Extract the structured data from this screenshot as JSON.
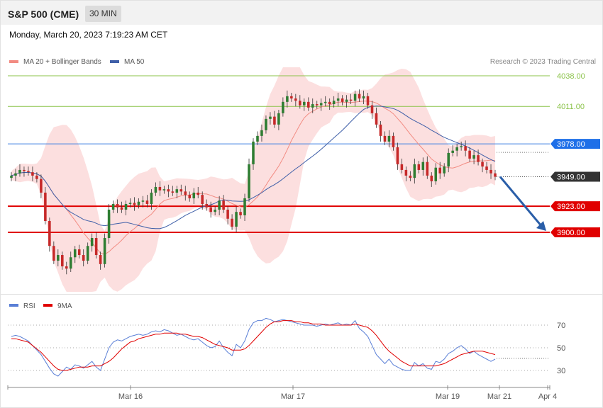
{
  "header": {
    "title": "S&P 500 (CME)",
    "timeframe": "30 MIN"
  },
  "date_text": "Monday, March 20, 2023 7:19:23 AM CET",
  "credit": "Research © 2023 Trading Central",
  "colors": {
    "up": "#2e7d32",
    "down": "#c62828",
    "bollinger": "#f9c4c4",
    "ma20": "#f28b82",
    "ma50": "#3f5fa8",
    "resistance": "#8bc34a",
    "pivot": "#3d7fe0",
    "support": "#e00000",
    "arrow": "#2a5ea8",
    "rsi": "#5a7fd6",
    "rsi_ma": "#e00000",
    "last_price": "#333333"
  },
  "legend": [
    {
      "name": "MA 20 + Bollinger Bands",
      "color": "#f28b82"
    },
    {
      "name": "MA 50",
      "color": "#3f5fa8"
    }
  ],
  "rsi_legend": [
    {
      "name": "RSI",
      "color": "#5a7fd6"
    },
    {
      "name": "9MA",
      "color": "#e00000"
    }
  ],
  "levels": [
    {
      "value": "4038.00",
      "kind": "resistance"
    },
    {
      "value": "4011.00",
      "kind": "resistance"
    },
    {
      "value": "3978.00",
      "kind": "pivot"
    },
    {
      "value": "3949.00",
      "kind": "last"
    },
    {
      "value": "3923.00",
      "kind": "support"
    },
    {
      "value": "3900.00",
      "kind": "support"
    }
  ],
  "x_ticks": [
    "Mar 16",
    "Mar 17",
    "Mar 19",
    "Mar 21",
    "Apr 4"
  ],
  "rsi_ticks": [
    "70",
    "50",
    "30"
  ],
  "chart_data": {
    "type": "candlestick",
    "y_range": [
      3840,
      4080
    ],
    "rsi_range": [
      15,
      85
    ],
    "closes": [
      3950,
      3952,
      3955,
      3954,
      3953,
      3950,
      3947,
      3935,
      3910,
      3888,
      3875,
      3880,
      3870,
      3868,
      3878,
      3885,
      3880,
      3875,
      3888,
      3895,
      3880,
      3872,
      3895,
      3920,
      3925,
      3922,
      3920,
      3925,
      3926,
      3924,
      3927,
      3928,
      3925,
      3935,
      3940,
      3937,
      3938,
      3936,
      3935,
      3938,
      3936,
      3933,
      3930,
      3935,
      3933,
      3925,
      3922,
      3918,
      3920,
      3928,
      3920,
      3912,
      3905,
      3918,
      3915,
      3930,
      3960,
      3980,
      3985,
      3990,
      4000,
      4002,
      3995,
      4005,
      4015,
      4020,
      4018,
      4016,
      4012,
      4015,
      4010,
      4013,
      4012,
      4014,
      4015,
      4013,
      4016,
      4018,
      4015,
      4017,
      4016,
      4022,
      4018,
      4020,
      4012,
      4005,
      3995,
      3985,
      3980,
      3985,
      3975,
      3960,
      3955,
      3950,
      3948,
      3960,
      3955,
      3962,
      3950,
      3945,
      3957,
      3952,
      3958,
      3970,
      3972,
      3975,
      3976,
      3972,
      3965,
      3968,
      3962,
      3958,
      3955,
      3952,
      3949
    ],
    "rsi": [
      60,
      61,
      60,
      58,
      56,
      52,
      48,
      44,
      38,
      32,
      27,
      25,
      29,
      33,
      31,
      35,
      34,
      32,
      35,
      38,
      33,
      30,
      40,
      50,
      55,
      57,
      56,
      58,
      60,
      61,
      62,
      61,
      62,
      64,
      65,
      64,
      66,
      65,
      63,
      61,
      62,
      60,
      58,
      57,
      58,
      55,
      52,
      50,
      51,
      56,
      50,
      46,
      43,
      53,
      50,
      56,
      66,
      72,
      74,
      74,
      76,
      75,
      73,
      74,
      75,
      74,
      73,
      72,
      71,
      70,
      70,
      70,
      69,
      70,
      71,
      70,
      71,
      72,
      70,
      71,
      70,
      74,
      67,
      64,
      60,
      52,
      44,
      40,
      36,
      40,
      35,
      33,
      31,
      30,
      30,
      37,
      34,
      36,
      32,
      31,
      38,
      37,
      40,
      45,
      47,
      50,
      52,
      49,
      45,
      47,
      44,
      42,
      40,
      38,
      40
    ],
    "rsi_ma": [
      58,
      58,
      57,
      56,
      55,
      52,
      49,
      46,
      42,
      38,
      34,
      31,
      30,
      30,
      31,
      32,
      33,
      33,
      33,
      34,
      34,
      34,
      36,
      38,
      41,
      45,
      49,
      52,
      55,
      56,
      58,
      59,
      60,
      61,
      62,
      62,
      63,
      63,
      63,
      63,
      62,
      62,
      61,
      60,
      60,
      59,
      57,
      55,
      53,
      52,
      51,
      50,
      48,
      48,
      48,
      49,
      52,
      56,
      60,
      64,
      68,
      71,
      73,
      73,
      74,
      74,
      74,
      73,
      73,
      72,
      72,
      71,
      71,
      71,
      70,
      70,
      70,
      70,
      70,
      70,
      70,
      71,
      70,
      69,
      68,
      65,
      61,
      56,
      51,
      47,
      44,
      41,
      38,
      36,
      34,
      34,
      34,
      34,
      34,
      34,
      34,
      35,
      36,
      38,
      40,
      42,
      44,
      45,
      46,
      47,
      47,
      47,
      46,
      45,
      44
    ]
  }
}
